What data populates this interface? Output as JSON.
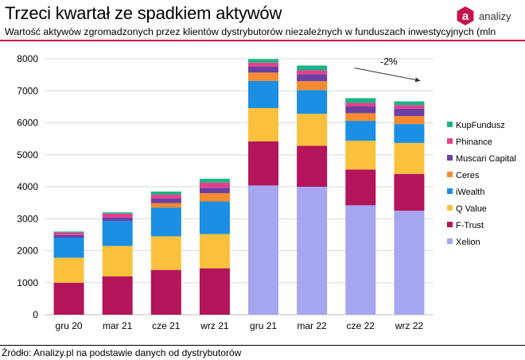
{
  "header": {
    "title": "Trzeci kwartał ze spadkiem aktywów",
    "subtitle": "Wartość aktywów zgromadzonych przez klientów dystrybutorów niezależnych w funduszach inwestycyjnych (mln",
    "logo_text": "analizy",
    "logo_mark": "a",
    "accent_color": "#c8144a"
  },
  "footer": {
    "source": "Źródło: Analizy.pl na podstawie danych od dystrybutorów"
  },
  "chart_data": {
    "type": "bar",
    "stacked": true,
    "categories": [
      "gru 20",
      "mar 21",
      "cze 21",
      "wrz 21",
      "gru 21",
      "mar 22",
      "cze 22",
      "wrz 22"
    ],
    "ylim": [
      0,
      8000
    ],
    "yticks": [
      0,
      1000,
      2000,
      3000,
      4000,
      5000,
      6000,
      7000,
      8000
    ],
    "grid": true,
    "legend_position": "right",
    "series": [
      {
        "name": "Xelion",
        "color": "#a5a5f0",
        "values": [
          0,
          0,
          0,
          0,
          4040,
          4000,
          3420,
          3250
        ]
      },
      {
        "name": "F-Trust",
        "color": "#b3145a",
        "values": [
          1000,
          1200,
          1400,
          1450,
          1380,
          1280,
          1120,
          1150
        ]
      },
      {
        "name": "Q Value",
        "color": "#fbc13c",
        "values": [
          780,
          950,
          1050,
          1070,
          1040,
          1000,
          900,
          970
        ]
      },
      {
        "name": "iWealth",
        "color": "#1a8fe3",
        "values": [
          630,
          780,
          900,
          1020,
          850,
          740,
          620,
          590
        ]
      },
      {
        "name": "Ceres",
        "color": "#f68a2e",
        "values": [
          0,
          0,
          140,
          260,
          260,
          280,
          240,
          250
        ]
      },
      {
        "name": "Muscari Capital",
        "color": "#6b3fa3",
        "values": [
          80,
          110,
          140,
          170,
          190,
          220,
          210,
          230
        ]
      },
      {
        "name": "Phinance",
        "color": "#e83e8c",
        "values": [
          80,
          120,
          120,
          160,
          120,
          120,
          110,
          110
        ]
      },
      {
        "name": "KupFundusz",
        "color": "#1cb486",
        "values": [
          30,
          40,
          100,
          120,
          110,
          150,
          150,
          120
        ]
      }
    ],
    "annotation": {
      "text": "-2%",
      "from_category": "cze 22",
      "to_category": "wrz 22"
    }
  }
}
